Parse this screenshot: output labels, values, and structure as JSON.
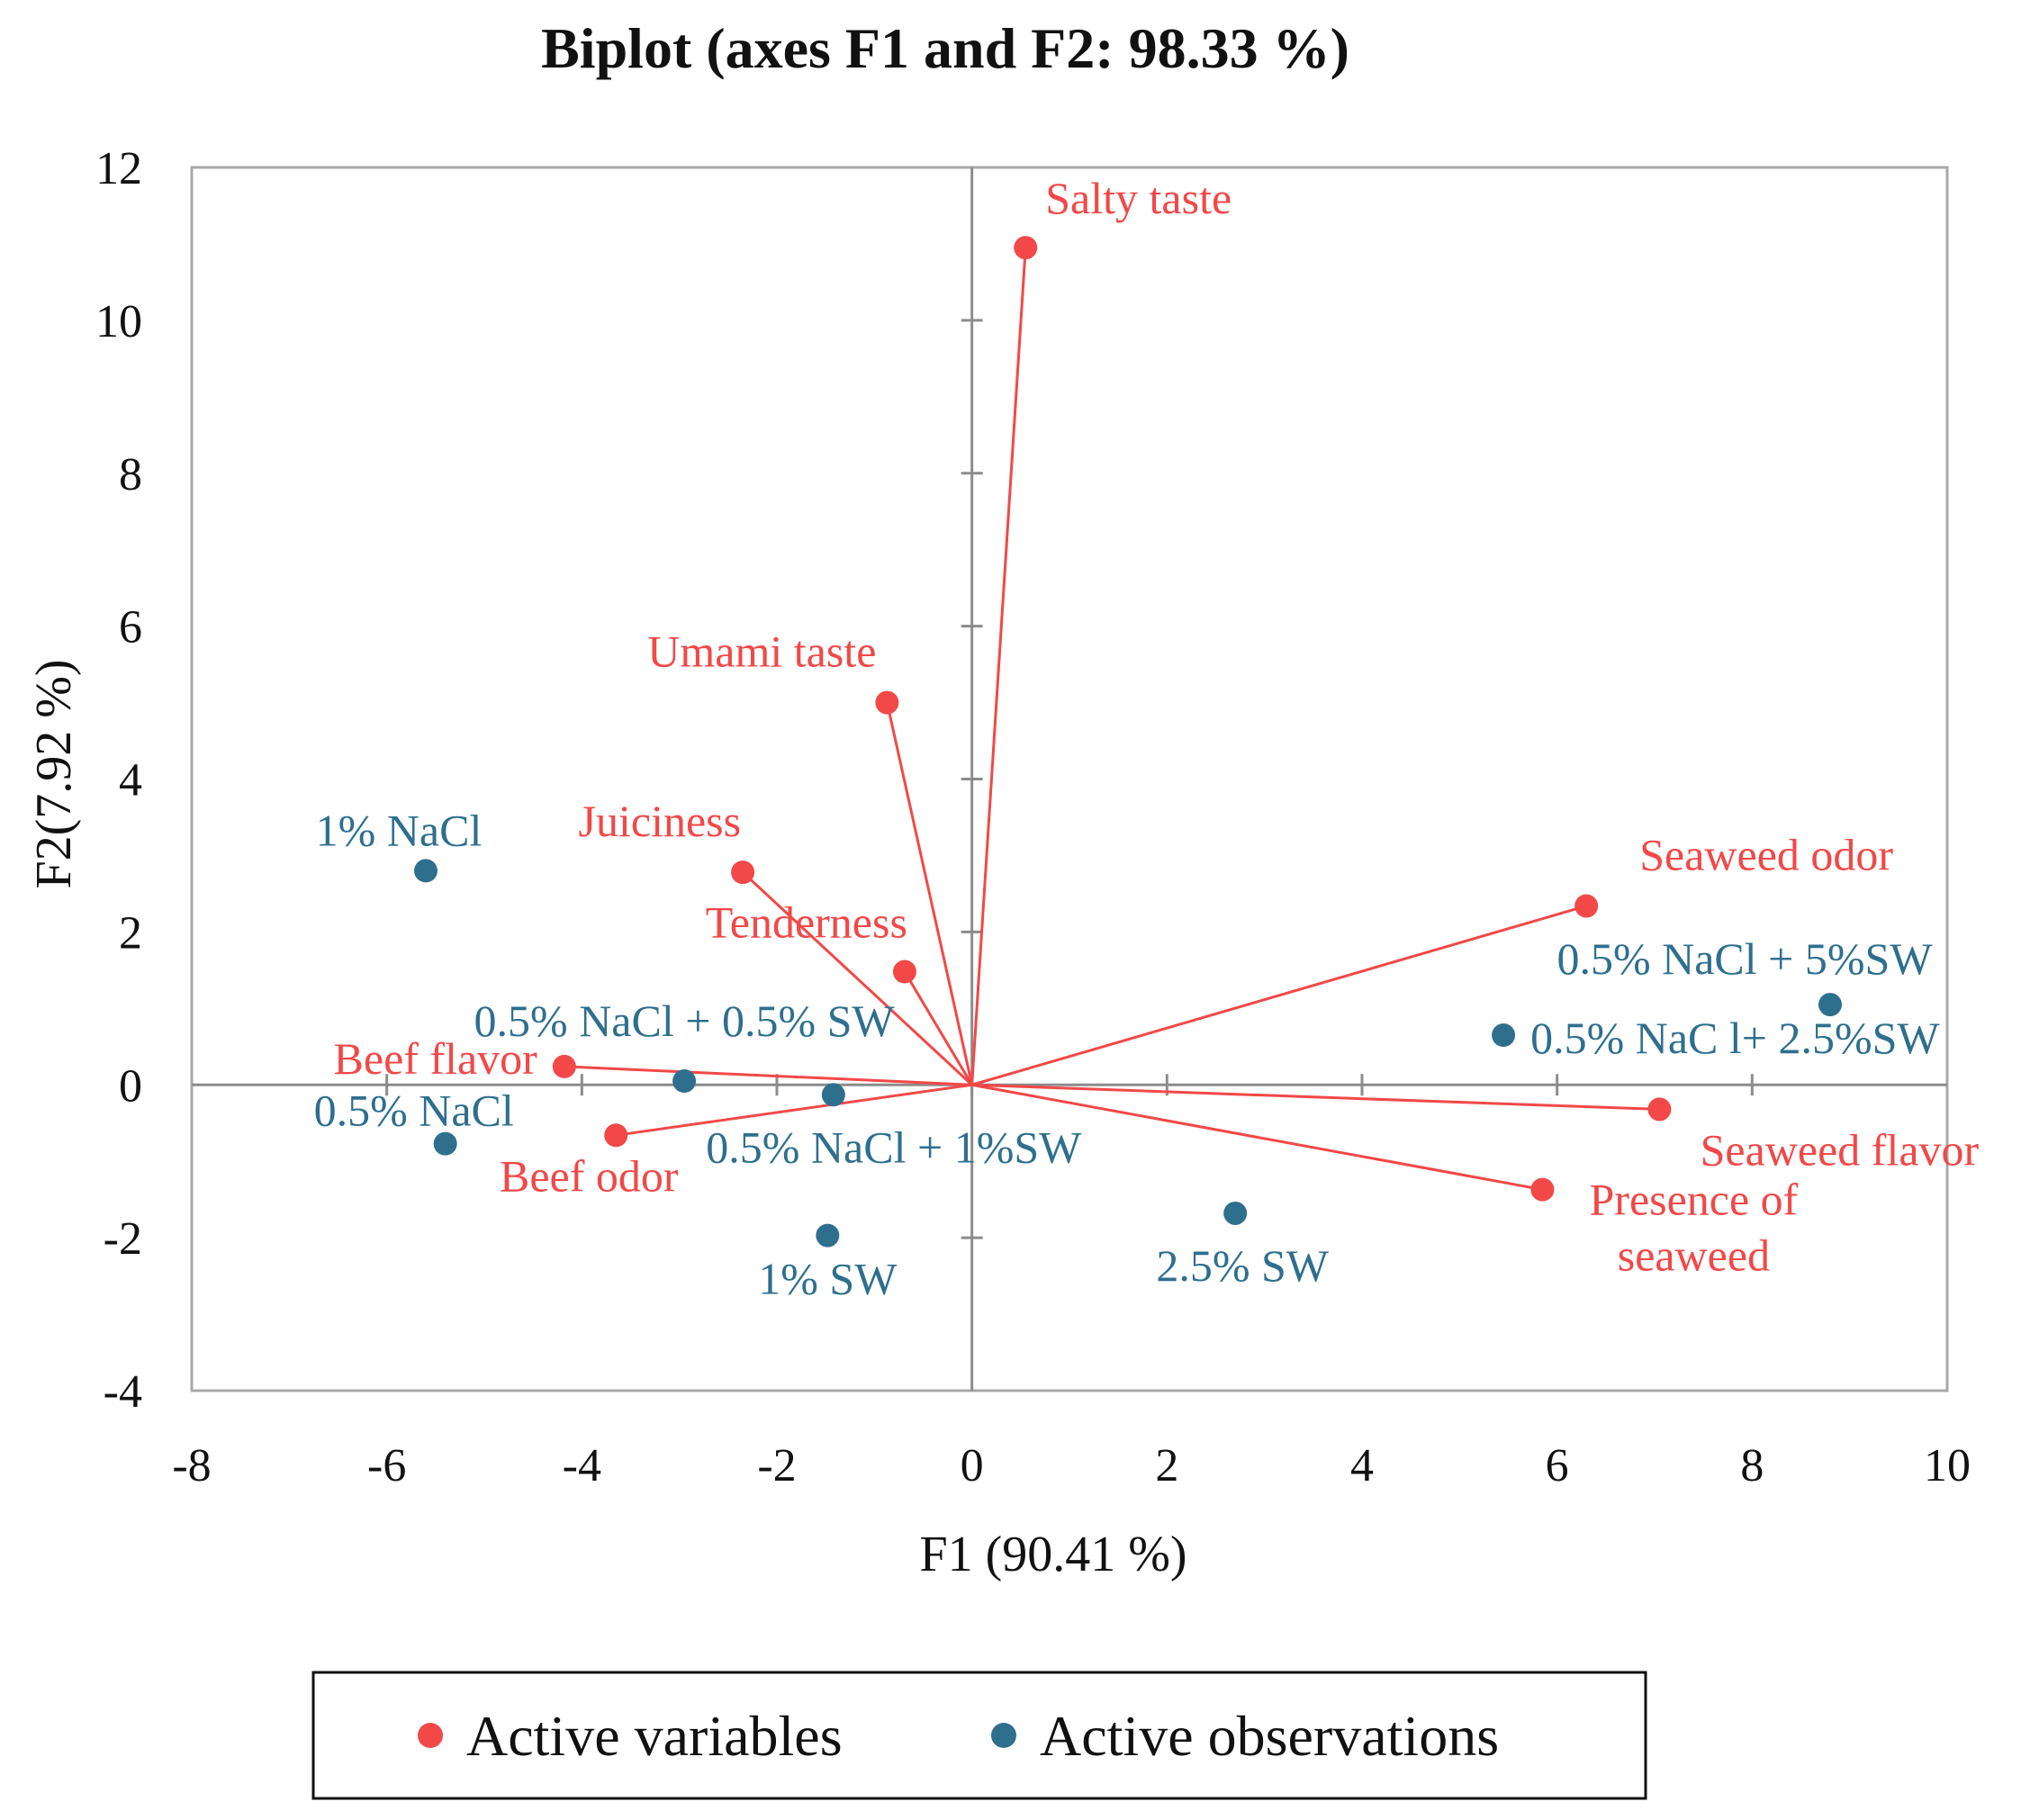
{
  "chart_data": {
    "type": "scatter",
    "subtype": "biplot",
    "title": "Biplot (axes F1 and F2: 98.33 %)",
    "xlabel": "F1 (90.41 %)",
    "ylabel": "F2(7.92 %)",
    "xlim": [
      -8,
      10
    ],
    "ylim": [
      -4,
      12
    ],
    "x_ticks": [
      -8,
      -6,
      -4,
      -2,
      0,
      2,
      4,
      6,
      8,
      10
    ],
    "y_ticks": [
      -4,
      -2,
      0,
      2,
      4,
      6,
      8,
      10,
      12
    ],
    "grid": false,
    "legend_position": "bottom",
    "colors": {
      "variables": "#f24848",
      "observations": "#2e6f8e",
      "axis": "#a8a8a8",
      "zero_line": "#8c8c8c"
    },
    "series": [
      {
        "name": "Active variables",
        "draw_vectors": true,
        "points": [
          {
            "label": "Salty taste",
            "x": 0.55,
            "y": 10.95
          },
          {
            "label": "Umami taste",
            "x": -0.87,
            "y": 5.0
          },
          {
            "label": "Juiciness",
            "x": -2.35,
            "y": 2.78
          },
          {
            "label": "Tenderness",
            "x": -0.69,
            "y": 1.48
          },
          {
            "label": "Beef flavor",
            "x": -4.18,
            "y": 0.24
          },
          {
            "label": "Beef odor",
            "x": -3.65,
            "y": -0.66
          },
          {
            "label": "Seaweed odor",
            "x": 6.3,
            "y": 2.34
          },
          {
            "label": "Seaweed flavor",
            "x": 7.05,
            "y": -0.32
          },
          {
            "label": "Presence of",
            "label2": "seaweed",
            "x": 5.85,
            "y": -1.37
          }
        ]
      },
      {
        "name": "Active observations",
        "draw_vectors": false,
        "points": [
          {
            "label": "1% NaCl",
            "x": -5.6,
            "y": 2.8
          },
          {
            "label": "0.5% NaCl + 0.5% SW",
            "x": -2.95,
            "y": 0.05
          },
          {
            "label": "0.5% NaCl",
            "x": -5.4,
            "y": -0.77
          },
          {
            "label": "0.5% NaCl + 1%SW",
            "x": -1.42,
            "y": -0.13
          },
          {
            "label": "1% SW",
            "x": -1.48,
            "y": -1.97
          },
          {
            "label": "2.5% SW",
            "x": 2.7,
            "y": -1.68
          },
          {
            "label": "0.5% NaCl + 5%SW",
            "x": 8.8,
            "y": 1.05
          },
          {
            "label": "0.5% NaC l+ 2.5%SW",
            "x": 5.45,
            "y": 0.65
          }
        ]
      }
    ]
  }
}
